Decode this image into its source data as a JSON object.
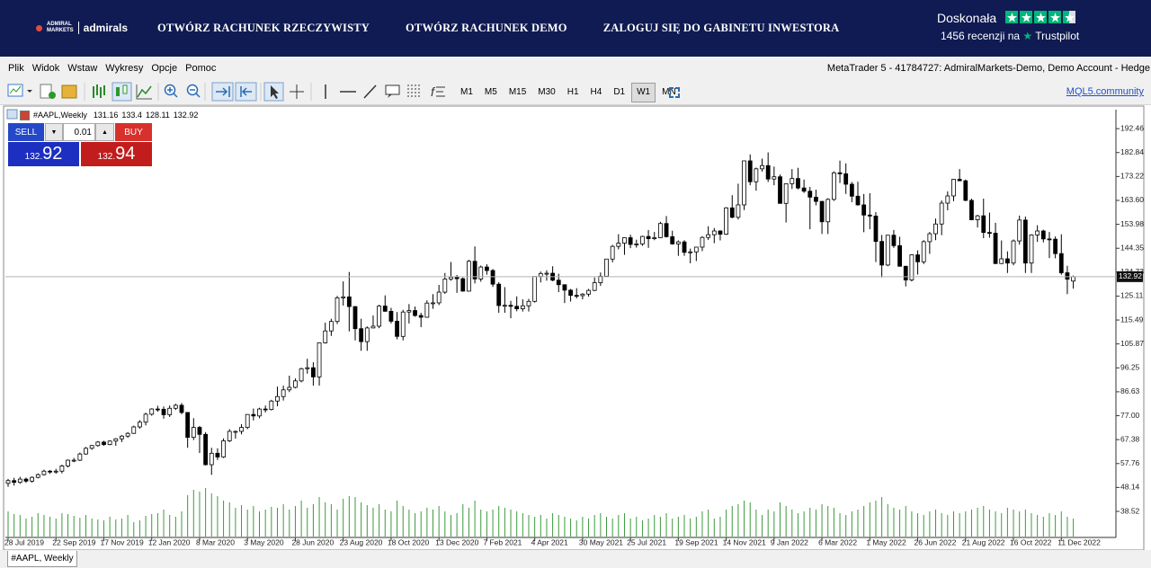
{
  "banner": {
    "logo_top": "ADMIRAL",
    "logo_bottom": "MARKETS",
    "logo_brand": "admirals",
    "links": [
      "OTWÓRZ RACHUNEK RZECZYWISTY",
      "OTWÓRZ RACHUNEK DEMO",
      "ZALOGUJ SIĘ DO GABINETU INWESTORA"
    ],
    "rating": "Doskonała",
    "reviews": "1456 recenzji na",
    "trustpilot": "Trustpilot"
  },
  "menu": {
    "items": [
      "Plik",
      "Widok",
      "Wstaw",
      "Wykresy",
      "Opcje",
      "Pomoc"
    ],
    "window_title": "MetaTrader 5 - 41784727: AdmiralMarkets-Demo, Demo Account - Hedge"
  },
  "toolbar": {
    "timeframes": [
      "M1",
      "M5",
      "M15",
      "M30",
      "H1",
      "H4",
      "D1",
      "W1",
      "MN"
    ],
    "active": "W1",
    "link": "MQL5.community"
  },
  "trade_panel": {
    "sell": "SELL",
    "buy": "BUY",
    "lot": "0.01",
    "bid_big": "132.",
    "bid_small": "92",
    "ask_big": "132.",
    "ask_small": "94"
  },
  "tab": "#AAPL, Weekly",
  "chart_data": {
    "type": "candlestick",
    "symbol": "#AAPL,Weekly",
    "bull_color": "#ffffff",
    "bear_color": "#000000",
    "volume_color": "#3c9a3c",
    "price_line_color": "#b4b4b4",
    "ylim": [
      28.4,
      200.1
    ],
    "yticks": [
      192.46,
      182.84,
      173.22,
      {
        "value": 163.6,
        "label": "163.60"
      },
      153.98,
      144.35,
      134.73,
      125.11,
      115.49,
      105.87,
      96.25,
      86.63,
      {
        "value": 77,
        "label": "77.00"
      },
      67.38,
      57.76,
      48.14,
      38.52
    ],
    "categories": [
      "28 Jul 2019",
      null,
      null,
      null,
      null,
      null,
      null,
      null,
      "22 Sep 2019",
      null,
      null,
      null,
      null,
      null,
      null,
      null,
      "17 Nov 2019",
      null,
      null,
      null,
      null,
      null,
      null,
      null,
      "12 Jan 2020",
      null,
      null,
      null,
      null,
      null,
      null,
      null,
      "8 Mar 2020",
      null,
      null,
      null,
      null,
      null,
      null,
      null,
      "3 May 2020",
      null,
      null,
      null,
      null,
      null,
      null,
      null,
      "28 Jun 2020",
      null,
      null,
      null,
      null,
      null,
      null,
      null,
      "23 Aug 2020",
      null,
      null,
      null,
      null,
      null,
      null,
      null,
      "18 Oct 2020",
      null,
      null,
      null,
      null,
      null,
      null,
      null,
      "13 Dec 2020",
      null,
      null,
      null,
      null,
      null,
      null,
      null,
      "7 Feb 2021",
      null,
      null,
      null,
      null,
      null,
      null,
      null,
      "4 Apr 2021",
      null,
      null,
      null,
      null,
      null,
      null,
      null,
      "30 May 2021",
      null,
      null,
      null,
      null,
      null,
      null,
      null,
      "25 Jul 2021",
      null,
      null,
      null,
      null,
      null,
      null,
      null,
      "19 Sep 2021",
      null,
      null,
      null,
      null,
      null,
      null,
      null,
      "14 Nov 2021",
      null,
      null,
      null,
      null,
      null,
      null,
      null,
      "9 Jan 2022",
      null,
      null,
      null,
      null,
      null,
      null,
      null,
      "6 Mar 2022",
      null,
      null,
      null,
      null,
      null,
      null,
      null,
      "1 May 2022",
      null,
      null,
      null,
      null,
      null,
      null,
      null,
      "26 Jun 2022",
      null,
      null,
      null,
      null,
      null,
      null,
      null,
      "21 Aug 2022",
      null,
      null,
      null,
      null,
      null,
      null,
      null,
      "16 Oct 2022",
      null,
      null,
      null,
      null,
      null,
      null,
      null,
      "11 Dec 2022",
      null,
      null
    ],
    "candles": [
      [
        49.8,
        51.6,
        48.4,
        50.9
      ],
      [
        50.9,
        52.0,
        48.9,
        50.2
      ],
      [
        50.2,
        52.4,
        49.6,
        51.5
      ],
      [
        51.5,
        52.1,
        50.0,
        50.7
      ],
      [
        50.7,
        52.6,
        50.1,
        52.2
      ],
      [
        52.2,
        53.8,
        51.8,
        53.3
      ],
      [
        53.3,
        55.3,
        52.9,
        54.7
      ],
      [
        54.7,
        55.2,
        53.6,
        54.4
      ],
      [
        54.4,
        55.6,
        53.7,
        54.7
      ],
      [
        54.7,
        57.3,
        53.8,
        56.8
      ],
      [
        56.8,
        59.4,
        56.2,
        59.1
      ],
      [
        59.0,
        60.0,
        58.3,
        59.1
      ],
      [
        59.1,
        62.2,
        58.8,
        61.6
      ],
      [
        61.6,
        64.4,
        61.3,
        63.9
      ],
      [
        63.9,
        65.2,
        63.3,
        65.0
      ],
      [
        65.0,
        66.8,
        64.5,
        66.4
      ],
      [
        66.4,
        66.9,
        64.9,
        65.4
      ],
      [
        65.4,
        67.1,
        65.1,
        66.8
      ],
      [
        66.8,
        68.0,
        64.9,
        67.7
      ],
      [
        67.7,
        69.2,
        66.4,
        68.8
      ],
      [
        68.8,
        70.4,
        68.1,
        69.9
      ],
      [
        69.9,
        73.0,
        69.7,
        72.5
      ],
      [
        72.5,
        75.2,
        71.8,
        74.4
      ],
      [
        74.4,
        78.2,
        73.1,
        77.6
      ],
      [
        77.6,
        80.0,
        77.0,
        79.7
      ],
      [
        79.7,
        81.0,
        78.6,
        79.6
      ],
      [
        79.6,
        80.7,
        75.8,
        77.4
      ],
      [
        77.4,
        81.1,
        76.5,
        80.0
      ],
      [
        80.0,
        81.8,
        79.3,
        81.2
      ],
      [
        81.2,
        82.1,
        77.6,
        78.3
      ],
      [
        78.3,
        78.4,
        64.1,
        68.3
      ],
      [
        68.3,
        76.0,
        67.2,
        72.3
      ],
      [
        72.3,
        72.9,
        62.0,
        69.5
      ],
      [
        69.5,
        70.4,
        57.0,
        57.3
      ],
      [
        57.3,
        64.1,
        53.2,
        61.9
      ],
      [
        61.9,
        63.9,
        59.2,
        60.4
      ],
      [
        60.4,
        67.9,
        60.0,
        66.9
      ],
      [
        66.9,
        71.6,
        66.4,
        70.7
      ],
      [
        70.7,
        71.0,
        67.8,
        70.7
      ],
      [
        70.7,
        73.6,
        69.5,
        72.3
      ],
      [
        72.3,
        77.6,
        71.6,
        77.5
      ],
      [
        77.5,
        79.9,
        75.1,
        76.9
      ],
      [
        76.9,
        80.2,
        76.0,
        79.7
      ],
      [
        79.7,
        81.1,
        78.3,
        79.5
      ],
      [
        79.5,
        83.4,
        79.1,
        82.9
      ],
      [
        82.9,
        88.7,
        80.8,
        84.7
      ],
      [
        84.7,
        89.1,
        83.1,
        87.4
      ],
      [
        87.4,
        93.1,
        86.5,
        88.4
      ],
      [
        88.4,
        92.0,
        88.0,
        91.0
      ],
      [
        91.0,
        96.3,
        90.4,
        95.9
      ],
      [
        95.9,
        99.9,
        93.9,
        96.3
      ],
      [
        96.3,
        98.5,
        89.1,
        92.6
      ],
      [
        92.6,
        106.4,
        89.1,
        106.3
      ],
      [
        106.3,
        114.4,
        106.0,
        111.1
      ],
      [
        111.1,
        116.0,
        109.1,
        114.9
      ],
      [
        114.9,
        125.2,
        113.9,
        124.4
      ],
      [
        124.4,
        131.0,
        121.3,
        124.8
      ],
      [
        124.8,
        134.8,
        110.9,
        120.9
      ],
      [
        120.9,
        121.0,
        107.3,
        112.0
      ],
      [
        112.0,
        116.0,
        103.1,
        106.8
      ],
      [
        106.8,
        112.9,
        103.1,
        112.3
      ],
      [
        112.3,
        117.3,
        112.2,
        113.0
      ],
      [
        113.0,
        121.6,
        112.2,
        121.1
      ],
      [
        121.1,
        125.4,
        118.8,
        119.0
      ],
      [
        119.0,
        120.4,
        114.1,
        115.0
      ],
      [
        115.0,
        118.7,
        107.7,
        108.9
      ],
      [
        108.9,
        119.6,
        107.3,
        118.7
      ],
      [
        118.7,
        121.9,
        114.1,
        119.3
      ],
      [
        119.3,
        120.9,
        116.8,
        117.3
      ],
      [
        117.3,
        118.4,
        112.6,
        116.6
      ],
      [
        116.6,
        123.4,
        116.4,
        122.3
      ],
      [
        122.3,
        125.9,
        120.0,
        122.4
      ],
      [
        122.4,
        129.6,
        121.5,
        126.7
      ],
      [
        126.7,
        134.4,
        126.0,
        131.97
      ],
      [
        131.97,
        138.8,
        131.3,
        132.7
      ],
      [
        132.7,
        133.6,
        126.4,
        132.1
      ],
      [
        132.1,
        132.6,
        126.9,
        127.1
      ],
      [
        127.1,
        139.7,
        126.9,
        139.1
      ],
      [
        139.1,
        145.1,
        130.2,
        132.0
      ],
      [
        132.0,
        137.4,
        130.9,
        136.8
      ],
      [
        136.8,
        137.9,
        133.7,
        135.4
      ],
      [
        135.4,
        136.0,
        128.8,
        129.9
      ],
      [
        129.9,
        130.7,
        118.4,
        121.3
      ],
      [
        121.3,
        128.7,
        118.4,
        121.4
      ],
      [
        121.4,
        123.2,
        116.2,
        121.0
      ],
      [
        121.0,
        125.0,
        119.0,
        120.0
      ],
      [
        120.0,
        123.8,
        118.9,
        121.2
      ],
      [
        121.2,
        124.0,
        118.9,
        123.0
      ],
      [
        123.0,
        133.0,
        122.5,
        133.0
      ],
      [
        133.0,
        135.0,
        130.6,
        134.2
      ],
      [
        134.2,
        135.5,
        131.3,
        134.3
      ],
      [
        134.3,
        137.1,
        131.1,
        131.5
      ],
      [
        131.5,
        134.1,
        126.7,
        129.7
      ],
      [
        129.7,
        129.8,
        122.3,
        127.5
      ],
      [
        127.5,
        128.0,
        122.9,
        125.4
      ],
      [
        125.4,
        128.3,
        124.2,
        125.3
      ],
      [
        125.3,
        126.3,
        123.8,
        125.9
      ],
      [
        125.9,
        128.0,
        124.9,
        127.4
      ],
      [
        127.4,
        132.6,
        127.1,
        130.5
      ],
      [
        130.5,
        134.6,
        129.2,
        133.1
      ],
      [
        133.1,
        140.0,
        133.0,
        140.0
      ],
      [
        140.0,
        145.7,
        138.7,
        145.1
      ],
      [
        145.1,
        150.0,
        143.9,
        146.4
      ],
      [
        146.4,
        148.7,
        141.7,
        148.6
      ],
      [
        148.6,
        149.8,
        144.4,
        145.9
      ],
      [
        145.9,
        147.8,
        144.6,
        146.1
      ],
      [
        146.1,
        149.4,
        145.3,
        149.1
      ],
      [
        149.1,
        151.7,
        144.5,
        148.2
      ],
      [
        148.2,
        150.9,
        147.6,
        148.6
      ],
      [
        148.6,
        154.98,
        148.4,
        154.3
      ],
      [
        154.3,
        157.3,
        148.7,
        149.0
      ],
      [
        149.0,
        151.4,
        145.8,
        146.1
      ],
      [
        146.1,
        147.5,
        141.3,
        146.9
      ],
      [
        146.9,
        147.6,
        141.3,
        142.7
      ],
      [
        142.7,
        144.2,
        138.3,
        142.9
      ],
      [
        142.9,
        144.9,
        139.2,
        144.8
      ],
      [
        144.8,
        149.2,
        143.2,
        148.7
      ],
      [
        148.7,
        153.2,
        147.7,
        149.8
      ],
      [
        149.8,
        152.5,
        146.4,
        151.3
      ],
      [
        151.3,
        151.6,
        147.5,
        150.0
      ],
      [
        150.0,
        160.9,
        149.7,
        160.6
      ],
      [
        160.6,
        165.7,
        156.4,
        156.8
      ],
      [
        156.8,
        170.3,
        155.9,
        161.8
      ],
      [
        161.8,
        179.6,
        159.7,
        179.5
      ],
      [
        179.5,
        182.1,
        169.7,
        171.1
      ],
      [
        171.1,
        176.8,
        167.5,
        176.3
      ],
      [
        176.3,
        180.4,
        175.2,
        177.6
      ],
      [
        177.6,
        182.9,
        171.0,
        172.2
      ],
      [
        172.2,
        177.2,
        169.7,
        173.1
      ],
      [
        173.1,
        174.0,
        162.3,
        162.4
      ],
      [
        162.4,
        170.4,
        154.7,
        170.3
      ],
      [
        170.3,
        176.2,
        168.2,
        172.4
      ],
      [
        172.4,
        176.7,
        168.0,
        168.6
      ],
      [
        168.6,
        172.0,
        166.6,
        167.3
      ],
      [
        167.3,
        169.0,
        152.0,
        164.9
      ],
      [
        164.9,
        167.9,
        161.6,
        163.2
      ],
      [
        163.2,
        163.4,
        150.1,
        155.0
      ],
      [
        155.0,
        164.5,
        150.1,
        164.0
      ],
      [
        164.0,
        175.3,
        163.4,
        174.7
      ],
      [
        174.7,
        179.6,
        170.6,
        174.3
      ],
      [
        174.3,
        178.5,
        166.2,
        170.1
      ],
      [
        170.1,
        171.0,
        162.9,
        165.3
      ],
      [
        165.3,
        171.1,
        161.5,
        161.8
      ],
      [
        161.8,
        166.2,
        150.8,
        157.7
      ],
      [
        157.7,
        166.5,
        152.0,
        157.3
      ],
      [
        157.3,
        158.9,
        138.8,
        147.1
      ],
      [
        147.1,
        149.7,
        132.6,
        137.6
      ],
      [
        137.6,
        149.7,
        137.1,
        149.6
      ],
      [
        149.6,
        151.7,
        144.5,
        145.4
      ],
      [
        145.4,
        149.0,
        137.1,
        137.1
      ],
      [
        137.1,
        137.3,
        129.0,
        131.6
      ],
      [
        131.6,
        141.9,
        131.0,
        141.7
      ],
      [
        141.7,
        143.5,
        133.8,
        138.9
      ],
      [
        138.9,
        147.6,
        138.0,
        147.0
      ],
      [
        147.0,
        150.9,
        142.1,
        150.2
      ],
      [
        150.2,
        156.3,
        147.6,
        154.1
      ],
      [
        154.1,
        163.6,
        149.6,
        162.5
      ],
      [
        162.5,
        167.2,
        159.6,
        165.4
      ],
      [
        165.4,
        172.2,
        163.3,
        172.1
      ],
      [
        172.1,
        176.2,
        171.3,
        171.5
      ],
      [
        171.5,
        172.0,
        163.3,
        163.6
      ],
      [
        163.6,
        164.3,
        155.8,
        155.8
      ],
      [
        155.8,
        157.8,
        152.7,
        157.4
      ],
      [
        157.4,
        164.3,
        148.4,
        150.7
      ],
      [
        150.7,
        158.7,
        148.6,
        150.4
      ],
      [
        150.4,
        154.6,
        138.0,
        138.2
      ],
      [
        138.2,
        147.5,
        138.0,
        140.1
      ],
      [
        140.1,
        143.1,
        134.4,
        138.4
      ],
      [
        138.4,
        147.9,
        137.5,
        147.3
      ],
      [
        147.3,
        157.5,
        145.8,
        155.7
      ],
      [
        155.7,
        157.1,
        134.4,
        138.4
      ],
      [
        138.4,
        150.0,
        134.4,
        149.7
      ],
      [
        149.7,
        153.6,
        146.9,
        151.3
      ],
      [
        151.3,
        151.8,
        146.7,
        148.1
      ],
      [
        148.1,
        150.9,
        140.4,
        148.0
      ],
      [
        148.0,
        149.1,
        140.3,
        142.2
      ],
      [
        142.2,
        149.97,
        133.7,
        134.5
      ],
      [
        134.5,
        137.3,
        125.9,
        131.9
      ],
      [
        131.16,
        133.4,
        128.11,
        132.92
      ]
    ],
    "volumes": [
      28,
      25,
      24,
      20,
      22,
      26,
      24,
      22,
      20,
      26,
      25,
      23,
      21,
      24,
      20,
      19,
      18,
      22,
      19,
      20,
      24,
      16,
      18,
      23,
      25,
      26,
      30,
      24,
      22,
      28,
      46,
      52,
      50,
      54,
      48,
      45,
      40,
      38,
      32,
      35,
      30,
      34,
      28,
      30,
      33,
      32,
      36,
      30,
      34,
      40,
      32,
      36,
      44,
      38,
      36,
      30,
      42,
      45,
      44,
      38,
      35,
      32,
      36,
      30,
      28,
      40,
      34,
      30,
      26,
      28,
      32,
      30,
      34,
      28,
      24,
      26,
      36,
      32,
      40,
      30,
      28,
      30,
      34,
      32,
      30,
      28,
      26,
      24,
      22,
      24,
      20,
      26,
      24,
      22,
      20,
      18,
      22,
      20,
      24,
      26,
      22,
      20,
      24,
      26,
      20,
      22,
      18,
      20,
      24,
      22,
      26,
      20,
      22,
      24,
      20,
      22,
      28,
      30,
      20,
      22,
      30,
      34,
      36,
      40,
      38,
      30,
      24,
      30,
      28,
      38,
      34,
      30,
      26,
      28,
      32,
      30,
      36,
      34,
      32,
      26,
      24,
      28,
      30,
      34,
      38,
      40,
      44,
      36,
      32,
      30,
      34,
      28,
      26,
      24,
      28,
      30,
      26,
      24,
      28,
      26,
      28,
      30,
      32,
      34,
      30,
      28,
      26,
      32,
      30,
      28,
      30,
      26,
      24,
      22,
      26,
      24,
      28,
      22,
      20
    ]
  }
}
